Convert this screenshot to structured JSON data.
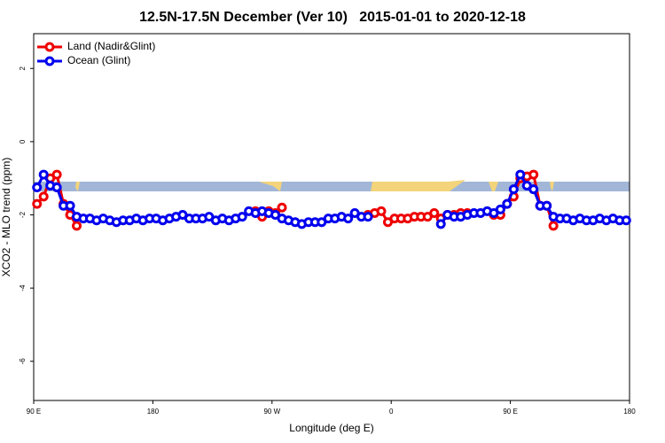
{
  "chart_data": {
    "type": "line",
    "title": "12.5N-17.5N December (Ver 10)   2015-01-01 to 2020-12-18",
    "xlabel": "Longitude (deg E)",
    "ylabel": "XCO2 - MLO trend (ppm)",
    "xlim": [
      90,
      540
    ],
    "ylim": [
      -7.07,
      2.95
    ],
    "xticks": [
      {
        "value": 90,
        "label": "90 E"
      },
      180,
      {
        "value": 270,
        "label": "90 W"
      },
      {
        "value": 360,
        "label": "0"
      },
      {
        "value": 450,
        "label": "90 E"
      },
      {
        "value": 540,
        "label": "180"
      }
    ],
    "yticks": [
      2,
      0,
      -2,
      -4,
      -6
    ],
    "legend": "top-left",
    "x": [
      92.5,
      97.5,
      102.5,
      107.5,
      112.5,
      117.5,
      122.5,
      127.5,
      132.5,
      137.5,
      142.5,
      147.5,
      152.5,
      157.5,
      162.5,
      167.5,
      172.5,
      177.5,
      182.5,
      187.5,
      192.5,
      197.5,
      202.5,
      207.5,
      212.5,
      217.5,
      222.5,
      227.5,
      232.5,
      237.5,
      242.5,
      247.5,
      252.5,
      257.5,
      262.5,
      267.5,
      272.5,
      277.5,
      282.5,
      287.5,
      292.5,
      297.5,
      302.5,
      307.5,
      312.5,
      317.5,
      322.5,
      327.5,
      332.5,
      337.5,
      342.5,
      347.5,
      352.5,
      357.5,
      362.5,
      367.5,
      372.5,
      377.5,
      382.5,
      387.5,
      392.5,
      397.5,
      402.5,
      407.5,
      412.5,
      417.5,
      422.5,
      427.5,
      432.5,
      437.5,
      442.5,
      447.5,
      452.5,
      457.5,
      462.5,
      467.5,
      472.5,
      477.5,
      482.5,
      487.5,
      492.5,
      497.5,
      502.5,
      507.5,
      512.5,
      517.5,
      522.5,
      527.5,
      532.5,
      537.5
    ],
    "series": [
      {
        "name": "Land (Nadir&Glint)",
        "color": "#ee0000",
        "values": [
          -1.7,
          -1.5,
          -1.0,
          -0.9,
          -1.7,
          -2.0,
          -2.3,
          null,
          null,
          null,
          null,
          null,
          null,
          null,
          null,
          null,
          null,
          null,
          null,
          null,
          null,
          null,
          null,
          null,
          null,
          null,
          null,
          null,
          null,
          null,
          null,
          null,
          null,
          -1.9,
          -2.05,
          -1.9,
          -1.95,
          -1.8,
          null,
          null,
          null,
          null,
          null,
          null,
          null,
          null,
          null,
          null,
          null,
          null,
          -2.0,
          -1.95,
          -1.9,
          -2.2,
          -2.1,
          -2.1,
          -2.1,
          -2.05,
          -2.05,
          -2.05,
          -1.95,
          -2.1,
          -2.0,
          -2.0,
          -1.95,
          -1.95,
          null,
          null,
          null,
          -2.0,
          -2.0,
          -1.7,
          -1.5,
          -1.0,
          -0.95,
          -0.9,
          -1.75,
          -1.75,
          -2.3,
          null,
          null,
          null,
          null,
          null,
          null,
          null,
          null,
          null,
          null,
          null
        ]
      },
      {
        "name": "Ocean (Glint)",
        "color": "#0000ee",
        "values": [
          -1.25,
          -0.9,
          -1.2,
          -1.25,
          -1.75,
          -1.75,
          -2.05,
          -2.1,
          -2.1,
          -2.15,
          -2.1,
          -2.15,
          -2.2,
          -2.15,
          -2.15,
          -2.1,
          -2.15,
          -2.1,
          -2.1,
          -2.15,
          -2.1,
          -2.05,
          -2.0,
          -2.1,
          -2.1,
          -2.1,
          -2.05,
          -2.15,
          -2.1,
          -2.15,
          -2.1,
          -2.05,
          -1.9,
          -1.95,
          -1.9,
          -1.95,
          -2.0,
          -2.1,
          -2.15,
          -2.2,
          -2.25,
          -2.2,
          -2.2,
          -2.2,
          -2.1,
          -2.1,
          -2.05,
          -2.1,
          -1.95,
          -2.05,
          -2.05,
          null,
          null,
          null,
          null,
          null,
          null,
          null,
          null,
          null,
          null,
          -2.25,
          -2.0,
          -2.05,
          -2.05,
          -2.0,
          -1.95,
          -1.95,
          -1.9,
          -1.95,
          -1.85,
          -1.7,
          -1.3,
          -0.9,
          -1.2,
          -1.3,
          -1.75,
          -1.75,
          -2.05,
          -2.1,
          -2.1,
          -2.15,
          -2.1,
          -2.15,
          -2.15,
          -2.1,
          -2.15,
          -2.1,
          -2.15,
          -2.15
        ]
      }
    ]
  }
}
